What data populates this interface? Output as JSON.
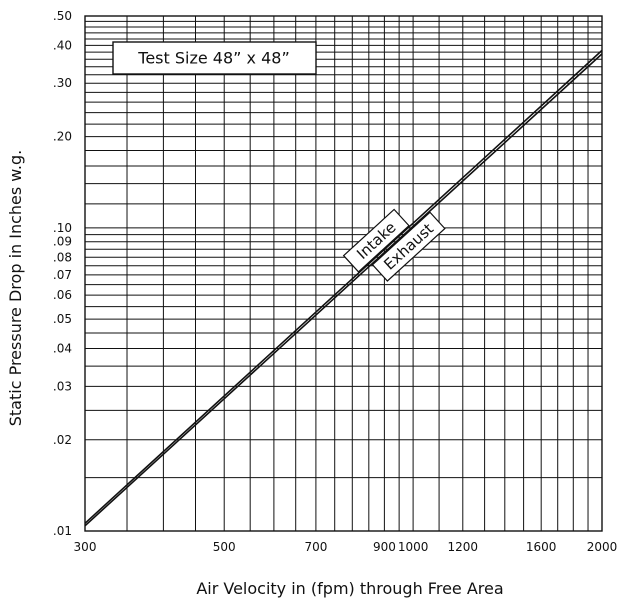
{
  "chart_data": {
    "type": "line",
    "title": "",
    "xlabel": "Air Velocity in (fpm) through Free Area",
    "ylabel": "Static Pressure Drop in Inches w.g.",
    "xscale": "log",
    "yscale": "log",
    "xlim": [
      300,
      2000
    ],
    "ylim": [
      0.01,
      0.5
    ],
    "grid": true,
    "x_tick_labels": [
      "300",
      "500",
      "700",
      "900",
      "1000",
      "1200",
      "1600",
      "2000"
    ],
    "y_tick_labels": [
      ".01",
      ".02",
      ".03",
      ".04",
      ".05",
      ".06",
      ".07",
      ".08",
      ".09",
      ".10",
      ".20",
      ".30",
      ".40",
      ".50"
    ],
    "annotation": "Test Size 48” x 48”",
    "series": [
      {
        "name": "Intake",
        "x": [
          300,
          2000
        ],
        "y": [
          0.0106,
          0.385
        ]
      },
      {
        "name": "Exhaust",
        "x": [
          300,
          2000
        ],
        "y": [
          0.0104,
          0.375
        ]
      }
    ]
  }
}
